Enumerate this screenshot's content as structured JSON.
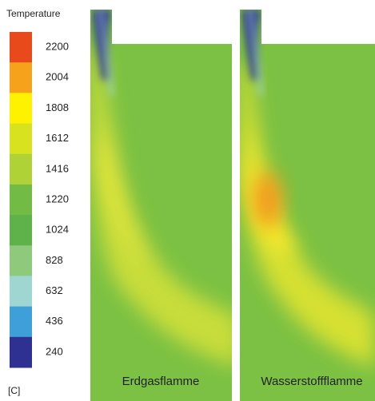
{
  "legend": {
    "title": "Temperature",
    "ticks": [
      2200,
      2004,
      1808,
      1612,
      1416,
      1220,
      1024,
      828,
      632,
      436,
      240
    ],
    "unit": "[C]",
    "colors": [
      "#e94a1c",
      "#f7a21b",
      "#fff200",
      "#d8e21f",
      "#afd236",
      "#72bb44",
      "#5fb24a",
      "#8fc97c",
      "#9fd6d2",
      "#3f9fd9",
      "#2e3192"
    ]
  },
  "panels": [
    {
      "label": "Erdgasflamme"
    },
    {
      "label": "Wasserstoffflamme"
    }
  ]
}
